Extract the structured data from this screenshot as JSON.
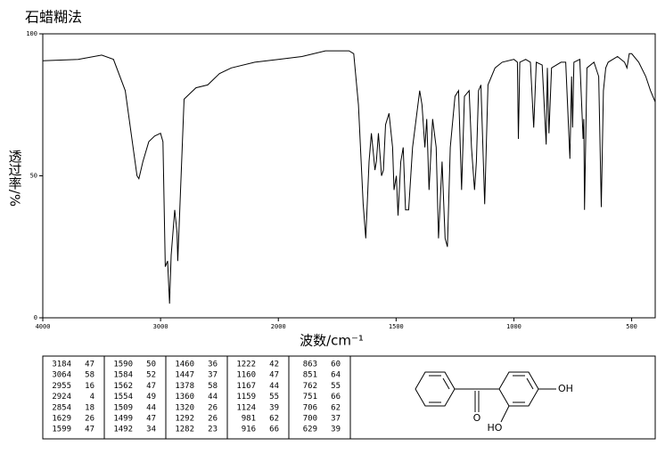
{
  "chart_data": {
    "type": "line",
    "title": "石蜡糊法",
    "x_label": "波数/cm⁻¹",
    "y_label": "透过率/%",
    "color": "#000000",
    "xlim": [
      4000,
      400
    ],
    "ylim": [
      0,
      100
    ],
    "xticks": [
      4000,
      3000,
      2000,
      1500,
      1000,
      500
    ],
    "yticks": [
      0,
      50,
      100
    ],
    "x": [
      4000,
      3700,
      3500,
      3400,
      3300,
      3250,
      3200,
      3184,
      3150,
      3100,
      3050,
      3000,
      2980,
      2960,
      2940,
      2924,
      2910,
      2880,
      2860,
      2854,
      2840,
      2800,
      2700,
      2600,
      2500,
      2400,
      2200,
      2000,
      1900,
      1800,
      1700,
      1680,
      1660,
      1640,
      1629,
      1615,
      1605,
      1599,
      1590,
      1584,
      1575,
      1562,
      1554,
      1545,
      1530,
      1515,
      1509,
      1499,
      1492,
      1480,
      1470,
      1460,
      1447,
      1430,
      1400,
      1390,
      1378,
      1370,
      1360,
      1345,
      1330,
      1320,
      1305,
      1292,
      1282,
      1270,
      1250,
      1235,
      1222,
      1210,
      1190,
      1180,
      1167,
      1163,
      1159,
      1150,
      1140,
      1124,
      1110,
      1080,
      1050,
      1000,
      985,
      981,
      975,
      950,
      930,
      916,
      905,
      880,
      863,
      858,
      851,
      840,
      800,
      780,
      762,
      755,
      751,
      745,
      720,
      706,
      703,
      700,
      690,
      660,
      640,
      629,
      620,
      610,
      600,
      560,
      530,
      520,
      510,
      500,
      470,
      440,
      420,
      400
    ],
    "values": [
      90.5,
      91,
      92.5,
      91,
      80,
      65,
      50,
      49,
      55,
      62,
      64,
      65,
      62,
      18,
      20,
      5,
      22,
      38,
      30,
      20,
      35,
      77,
      81,
      82,
      86,
      88,
      90,
      91,
      92,
      94,
      94,
      93,
      75,
      40,
      28,
      55,
      65,
      60,
      52,
      55,
      65,
      50,
      52,
      68,
      72,
      60,
      45,
      50,
      36,
      55,
      60,
      38,
      38,
      60,
      80,
      75,
      60,
      70,
      45,
      70,
      60,
      28,
      55,
      28,
      25,
      60,
      78,
      80,
      45,
      78,
      80,
      60,
      45,
      50,
      55,
      80,
      82,
      40,
      82,
      88,
      90,
      91,
      90,
      63,
      90,
      91,
      90,
      67,
      90,
      89,
      61,
      88,
      65,
      88,
      90,
      90,
      56,
      85,
      67,
      90,
      91,
      63,
      70,
      38,
      88,
      90,
      85,
      39,
      80,
      88,
      90,
      92,
      90,
      88,
      93,
      93,
      90,
      85,
      80,
      76
    ]
  },
  "peak_table": {
    "columns": [
      [
        [
          3184,
          47
        ],
        [
          3064,
          58
        ],
        [
          2955,
          16
        ],
        [
          2924,
          4
        ],
        [
          2854,
          18
        ],
        [
          1629,
          26
        ],
        [
          1599,
          47
        ]
      ],
      [
        [
          1590,
          50
        ],
        [
          1584,
          52
        ],
        [
          1562,
          47
        ],
        [
          1554,
          49
        ],
        [
          1509,
          44
        ],
        [
          1499,
          47
        ],
        [
          1492,
          34
        ]
      ],
      [
        [
          1460,
          36
        ],
        [
          1447,
          37
        ],
        [
          1378,
          58
        ],
        [
          1360,
          44
        ],
        [
          1320,
          26
        ],
        [
          1292,
          26
        ],
        [
          1282,
          23
        ]
      ],
      [
        [
          1222,
          42
        ],
        [
          1160,
          47
        ],
        [
          1167,
          44
        ],
        [
          1159,
          55
        ],
        [
          1124,
          39
        ],
        [
          981,
          62
        ],
        [
          916,
          66
        ]
      ],
      [
        [
          863,
          60
        ],
        [
          851,
          64
        ],
        [
          762,
          55
        ],
        [
          751,
          66
        ],
        [
          706,
          62
        ],
        [
          700,
          37
        ],
        [
          629,
          39
        ]
      ]
    ]
  },
  "structure": {
    "labels": [
      "O",
      "OH",
      "HO"
    ]
  }
}
